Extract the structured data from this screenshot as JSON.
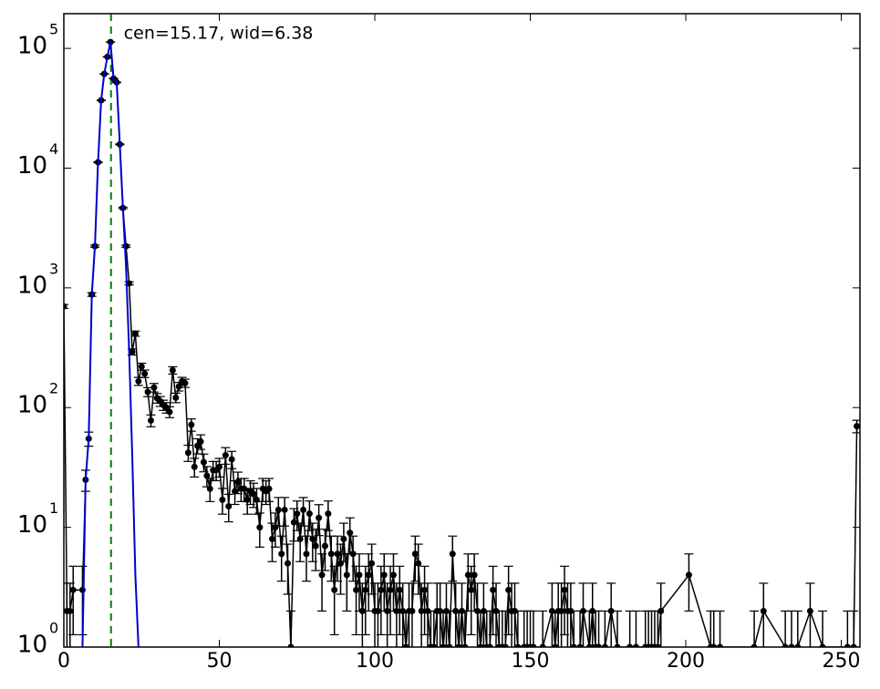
{
  "chart_data": {
    "type": "line",
    "log_y": true,
    "xlim": [
      0,
      256
    ],
    "ylim": [
      1,
      195000
    ],
    "xticks": [
      0,
      50,
      100,
      150,
      200,
      250
    ],
    "yticks": [
      {
        "value": 1,
        "label": "10",
        "exponent": "0"
      },
      {
        "value": 10,
        "label": "10",
        "exponent": "1"
      },
      {
        "value": 100,
        "label": "10",
        "exponent": "2"
      },
      {
        "value": 1000,
        "label": "10",
        "exponent": "3"
      },
      {
        "value": 10000,
        "label": "10",
        "exponent": "4"
      },
      {
        "value": 100000,
        "label": "10",
        "exponent": "5"
      }
    ],
    "annotation": {
      "text": "cen=15.17, wid=6.38",
      "color": "#008000"
    },
    "vline": {
      "x": 15.17,
      "color": "#008000"
    },
    "series": [
      {
        "color": "#000000",
        "error_bars": true,
        "markers": true,
        "x": [
          0,
          1,
          2,
          3,
          6,
          7,
          8,
          9,
          10,
          11,
          12,
          13,
          14,
          15,
          16,
          17,
          18,
          19,
          20,
          21,
          22,
          23,
          24,
          25,
          26,
          27,
          28,
          29,
          30,
          31,
          32,
          33,
          34,
          35,
          36,
          37,
          38,
          39,
          40,
          41,
          42,
          43,
          44,
          45,
          46,
          47,
          48,
          49,
          50,
          51,
          52,
          53,
          54,
          55,
          56,
          57,
          58,
          59,
          60,
          61,
          62,
          63,
          64,
          65,
          66,
          67,
          68,
          69,
          70,
          71,
          72,
          73,
          74,
          75,
          76,
          77,
          78,
          79,
          80,
          81,
          82,
          83,
          84,
          85,
          86,
          87,
          88,
          89,
          90,
          91,
          92,
          93,
          94,
          95,
          96,
          97,
          98,
          99,
          100,
          101,
          102,
          103,
          104,
          105,
          106,
          107,
          108,
          109,
          110,
          111,
          112,
          113,
          114,
          115,
          116,
          117,
          118,
          119,
          120,
          121,
          122,
          123,
          124,
          125,
          126,
          127,
          128,
          129,
          130,
          131,
          132,
          133,
          134,
          135,
          136,
          137,
          138,
          139,
          140,
          141,
          142,
          143,
          144,
          145,
          146,
          148,
          149,
          150,
          151,
          154,
          157,
          158,
          159,
          160,
          161,
          162,
          163,
          164,
          166,
          167,
          169,
          170,
          171,
          172,
          174,
          176,
          178,
          182,
          184,
          187,
          188,
          189,
          190,
          191,
          192,
          201,
          208,
          209,
          211,
          222,
          225,
          232,
          234,
          236,
          240,
          244,
          252,
          254,
          255
        ],
        "values": [
          700,
          2,
          2,
          3,
          3,
          25,
          55,
          880,
          2230,
          11200,
          36800,
          61200,
          85000,
          113000,
          56000,
          52000,
          15800,
          4650,
          2230,
          1090,
          292,
          415,
          166,
          220,
          192,
          135,
          78,
          147,
          120,
          113,
          105,
          100,
          92,
          205,
          121,
          150,
          166,
          160,
          42,
          72,
          32,
          48,
          52,
          35,
          27,
          21,
          30,
          30,
          32,
          17,
          40,
          15,
          37,
          20,
          24,
          21,
          21,
          17,
          20,
          19,
          17,
          10,
          21,
          20,
          21,
          8,
          10,
          14,
          6,
          14,
          5,
          1,
          11,
          13,
          8,
          14,
          6,
          13,
          8,
          7,
          12,
          4,
          7,
          13,
          6,
          3,
          6,
          5,
          8,
          4,
          9,
          6,
          3,
          4,
          2,
          3,
          4,
          5,
          2,
          2,
          3,
          4,
          2,
          3,
          4,
          2,
          3,
          2,
          1,
          2,
          2,
          6,
          5,
          2,
          3,
          2,
          1,
          1,
          2,
          2,
          1,
          2,
          1,
          6,
          2,
          1,
          2,
          1,
          4,
          3,
          4,
          2,
          1,
          2,
          1,
          1,
          3,
          2,
          1,
          1,
          1,
          3,
          2,
          2,
          1,
          1,
          1,
          1,
          1,
          1,
          2,
          1,
          2,
          2,
          3,
          2,
          2,
          1,
          1,
          2,
          1,
          2,
          1,
          1,
          1,
          2,
          1,
          1,
          1,
          1,
          1,
          1,
          1,
          1,
          2,
          4,
          1,
          1,
          1,
          1,
          2,
          1,
          1,
          1,
          2,
          1,
          1,
          1,
          70
        ]
      },
      {
        "color": "#0000cc",
        "error_bars": false,
        "markers": false,
        "x": [
          6,
          7,
          8,
          9,
          10,
          11,
          12,
          13,
          14,
          15,
          16,
          17,
          18,
          19,
          20,
          21,
          22,
          23,
          24
        ],
        "values": [
          1,
          25,
          55,
          880,
          2230,
          11200,
          36800,
          61200,
          85000,
          113000,
          56000,
          52000,
          15800,
          4650,
          1500,
          300,
          40,
          4,
          1
        ]
      }
    ]
  }
}
